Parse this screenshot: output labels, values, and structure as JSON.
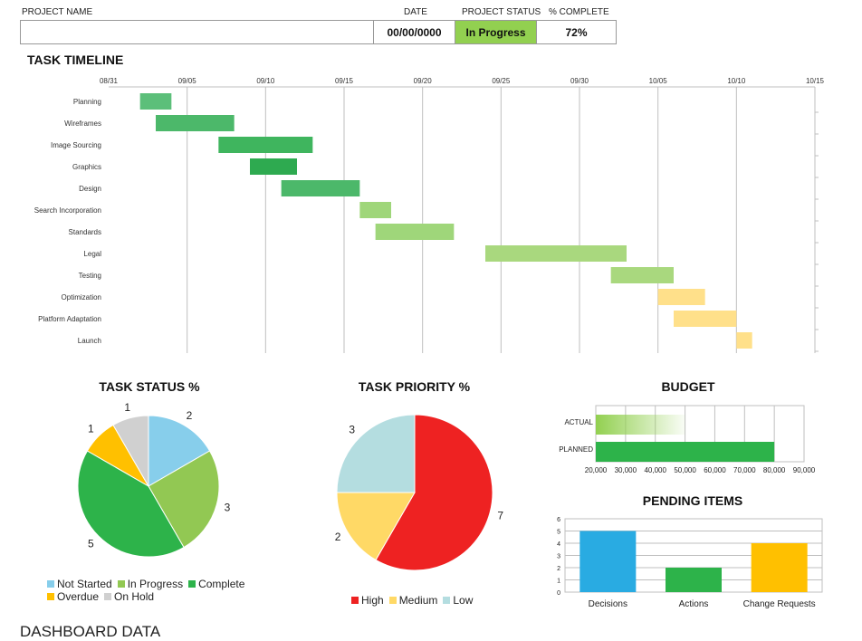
{
  "header": {
    "project_name_label": "PROJECT NAME",
    "project_name_value": "",
    "date_label": "DATE",
    "date_value": "00/00/0000",
    "status_label": "PROJECT  STATUS",
    "status_value": "In Progress",
    "complete_label": "% COMPLETE",
    "complete_value": "72%",
    "status_color": "#92d050"
  },
  "timeline": {
    "title": "TASK TIMELINE"
  },
  "task_status": {
    "title": "TASK STATUS %"
  },
  "task_priority": {
    "title": "TASK PRIORITY %"
  },
  "budget": {
    "title": "BUDGET"
  },
  "pending": {
    "title": "PENDING ITEMS"
  },
  "footer": {
    "title": "DASHBOARD DATA"
  },
  "chart_data": [
    {
      "type": "bar",
      "subtype": "gantt",
      "title": "TASK TIMELINE",
      "x_ticks": [
        "08/31",
        "09/05",
        "09/10",
        "09/15",
        "09/20",
        "09/25",
        "09/30",
        "10/05",
        "10/10",
        "10/15"
      ],
      "x_range_days": [
        0,
        45
      ],
      "grid": true,
      "tasks": [
        {
          "name": "Planning",
          "start_day": 2,
          "duration_days": 2,
          "color": "#5cbf7a"
        },
        {
          "name": "Wireframes",
          "start_day": 3,
          "duration_days": 5,
          "color": "#4cb86a"
        },
        {
          "name": "Image Sourcing",
          "start_day": 7,
          "duration_days": 6,
          "color": "#3fb55e"
        },
        {
          "name": "Graphics",
          "start_day": 9,
          "duration_days": 3,
          "color": "#2eaa50"
        },
        {
          "name": "Design",
          "start_day": 11,
          "duration_days": 5,
          "color": "#4cb86a"
        },
        {
          "name": "Search Incorporation",
          "start_day": 16,
          "duration_days": 2,
          "color": "#9fd67a"
        },
        {
          "name": "Standards",
          "start_day": 17,
          "duration_days": 5,
          "color": "#9fd67a"
        },
        {
          "name": "Legal",
          "start_day": 24,
          "duration_days": 9,
          "color": "#a9d87e"
        },
        {
          "name": "Testing",
          "start_day": 32,
          "duration_days": 4,
          "color": "#a9d87e"
        },
        {
          "name": "Optimization",
          "start_day": 35,
          "duration_days": 3,
          "color": "#ffe08a"
        },
        {
          "name": "Platform Adaptation",
          "start_day": 36,
          "duration_days": 4,
          "color": "#ffe08a"
        },
        {
          "name": "Launch",
          "start_day": 40,
          "duration_days": 1,
          "color": "#ffe08a"
        }
      ]
    },
    {
      "type": "pie",
      "title": "TASK STATUS %",
      "legend": "bottom",
      "slices": [
        {
          "name": "Not Started",
          "value": 2,
          "color": "#87ceeb"
        },
        {
          "name": "In Progress",
          "value": 3,
          "color": "#92c853"
        },
        {
          "name": "Complete",
          "value": 5,
          "color": "#2db34a"
        },
        {
          "name": "Overdue",
          "value": 1,
          "color": "#ffc000"
        },
        {
          "name": "On Hold",
          "value": 1,
          "color": "#d0d0d0"
        }
      ]
    },
    {
      "type": "pie",
      "title": "TASK PRIORITY %",
      "legend": "bottom",
      "slices": [
        {
          "name": "High",
          "value": 7,
          "color": "#ee2222"
        },
        {
          "name": "Medium",
          "value": 2,
          "color": "#ffd966"
        },
        {
          "name": "Low",
          "value": 3,
          "color": "#b4dde0"
        }
      ]
    },
    {
      "type": "bar",
      "orientation": "horizontal",
      "title": "BUDGET",
      "categories": [
        "ACTUAL",
        "PLANNED"
      ],
      "values": [
        50000,
        80000
      ],
      "xlim": [
        20000,
        90000
      ],
      "x_ticks": [
        "20,000",
        "30,000",
        "40,000",
        "50,000",
        "60,000",
        "70,000",
        "80,000",
        "90,000"
      ],
      "grid": true,
      "colors": [
        "#92d050",
        "#2db34a"
      ]
    },
    {
      "type": "bar",
      "title": "PENDING ITEMS",
      "categories": [
        "Decisions",
        "Actions",
        "Change Requests"
      ],
      "values": [
        5,
        2,
        4
      ],
      "ylim": [
        0,
        6
      ],
      "y_ticks": [
        "0",
        "1",
        "2",
        "3",
        "4",
        "5",
        "6"
      ],
      "grid": true,
      "colors": [
        "#29abe2",
        "#2db34a",
        "#ffc000"
      ]
    }
  ]
}
